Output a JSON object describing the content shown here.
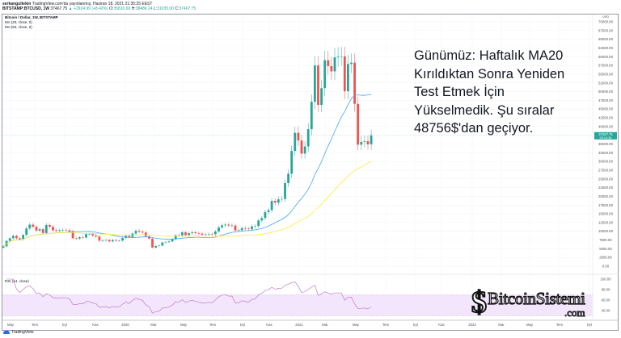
{
  "header": {
    "author": "serkangultekin",
    "published": "TradingView.com'da yayınlanmış, Haziran 18, 2021 21:35:25 EEST",
    "symbol": "BITSTAMP:BTCUSD, 1W",
    "last": "37467.75",
    "change": "▲ +2924.99 (+8.42%)",
    "o_label": "O:",
    "o": "35810.69",
    "h_label": "H:",
    "h": "38486.24",
    "l_label": "L:",
    "l": "31035.00",
    "c_label": "C:",
    "c": "37467.75"
  },
  "legend": {
    "title": "Bitcoin / Dollar, 1W, BITSTAMP",
    "ma20": "MA (20, close, 0)",
    "ma50": "MA (50, close, 0)",
    "rsi": "RSI (14, close)"
  },
  "annotation": "Günümüz: Haftalık MA20 Kırıldıktan Sonra Yeniden Test Etmek İçin Yükselmedik. Şu sıralar 48756$'dan geçiyor.",
  "price_tag": {
    "value": "37467.75",
    "countdown": "09:14:36"
  },
  "footer": {
    "brand": "TradingView"
  },
  "watermark": {
    "name": "BitcoinSistemi",
    "suffix": ".com"
  },
  "colors": {
    "up": "#26a69a",
    "down": "#ef5350",
    "ma20": "#42a5f5",
    "ma50": "#ffeb3b",
    "rsi": "#ba68c8",
    "rsi_band": "#f3e5fc",
    "price_tag": "#26a69a"
  },
  "chart_data": {
    "type": "candlestick",
    "interval": "1W",
    "currency": "USD",
    "y_ticks": [
      "70000.00",
      "67500.00",
      "65000.00",
      "62500.00",
      "60000.00",
      "57500.00",
      "55000.00",
      "52500.00",
      "50000.00",
      "47500.00",
      "45000.00",
      "42500.00",
      "40000.00",
      "35000.00",
      "32500.00",
      "30000.00",
      "27500.00",
      "25000.00",
      "22500.00",
      "20000.00",
      "17500.00",
      "15000.00",
      "12500.00",
      "10000.00",
      "7500.00",
      "5000.00",
      "2500.00",
      "0.00"
    ],
    "ylim": [
      0,
      70000
    ],
    "rsi_ticks": [
      "100.00",
      "80.00",
      "60.00",
      "40.00"
    ],
    "rsi_band": [
      30,
      70
    ],
    "x_ticks": [
      "May",
      "Tem",
      "Eyl",
      "Kas",
      "2020",
      "Mar",
      "May",
      "Tem",
      "Eyl",
      "Kas",
      "2021",
      "Mar",
      "May",
      "Tem",
      "Eyl",
      "Kas",
      "2022",
      "Mar",
      "May",
      "Tem",
      "Eyl"
    ],
    "first_open": 5300,
    "close": [
      5700,
      7250,
      8000,
      8700,
      8000,
      7650,
      8950,
      10800,
      11900,
      11300,
      10200,
      10600,
      9500,
      11800,
      11300,
      10300,
      10100,
      10300,
      10400,
      10300,
      10000,
      8000,
      7900,
      8300,
      8200,
      9200,
      9200,
      8800,
      8500,
      7300,
      7400,
      7500,
      7100,
      7500,
      7300,
      7350,
      8100,
      8700,
      8350,
      9350,
      10150,
      9900,
      9650,
      8550,
      7900,
      5350,
      5800,
      5900,
      6800,
      6900,
      7100,
      7700,
      8900,
      8750,
      9700,
      8900,
      9450,
      9700,
      9450,
      9300,
      9000,
      9100,
      9250,
      9150,
      9950,
      11100,
      11700,
      11900,
      11650,
      11650,
      10250,
      10300,
      10900,
      10750,
      10600,
      11400,
      11500,
      13100,
      13800,
      15500,
      16050,
      18700,
      18200,
      19150,
      19250,
      23800,
      26500,
      33000,
      38200,
      36000,
      32250,
      34300,
      39250,
      47100,
      57500,
      46200,
      51000,
      59000,
      57300,
      55800,
      59800,
      60000,
      60100,
      50100,
      57900,
      58300,
      46500,
      34800,
      35600,
      35800,
      34900,
      37467.75
    ]
  }
}
